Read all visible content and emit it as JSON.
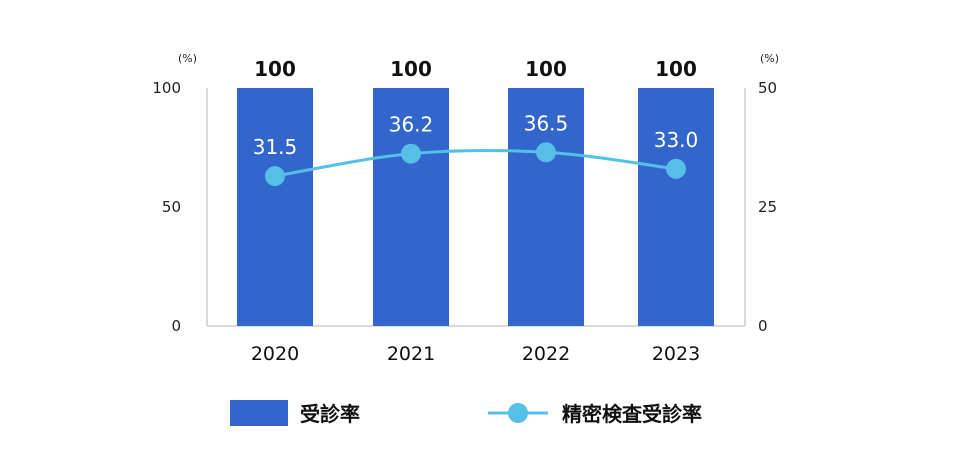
{
  "chart_data": {
    "type": "bar",
    "categories": [
      "2020",
      "2021",
      "2022",
      "2023"
    ],
    "series": [
      {
        "name": "受診率",
        "type": "bar",
        "axis": "left",
        "values": [
          100,
          100,
          100,
          100
        ],
        "color": "#3366cc"
      },
      {
        "name": "精密検査受診率",
        "type": "line",
        "axis": "right",
        "values": [
          31.5,
          36.2,
          36.5,
          33.0
        ],
        "color": "#55bfe6"
      }
    ],
    "data_labels": {
      "bar": [
        "100",
        "100",
        "100",
        "100"
      ],
      "line": [
        "31.5",
        "36.2",
        "36.5",
        "33.0"
      ]
    },
    "y_left": {
      "unit": "(%)",
      "ylim": [
        0,
        100
      ],
      "ticks": [
        "0",
        "50",
        "100"
      ]
    },
    "y_right": {
      "unit": "(%)",
      "ylim": [
        0,
        50
      ],
      "ticks": [
        "0",
        "25",
        "50"
      ]
    },
    "legend": {
      "placement": "bottom",
      "items": [
        "受診率",
        "精密検査受診率"
      ]
    }
  }
}
